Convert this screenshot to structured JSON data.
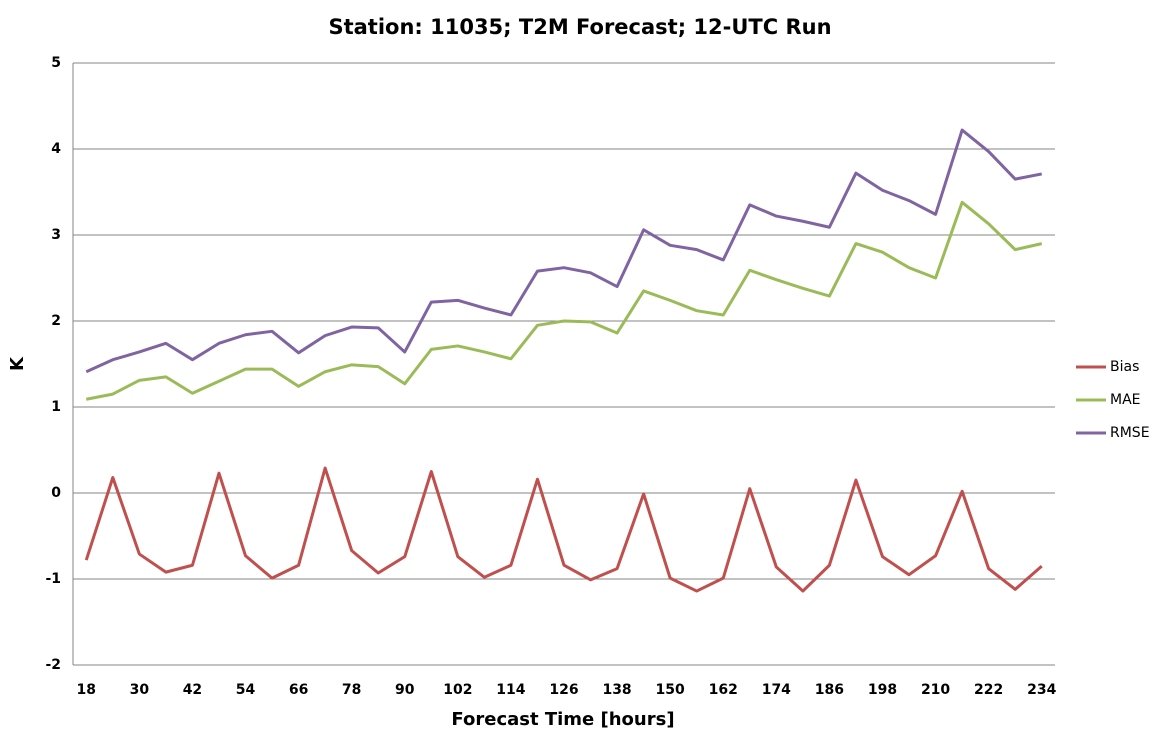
{
  "chart_data": {
    "type": "line",
    "title": "Station: 11035; T2M Forecast; 12-UTC Run",
    "xlabel": "Forecast Time [hours]",
    "ylabel": "K",
    "x": [
      18,
      24,
      30,
      36,
      42,
      48,
      54,
      60,
      66,
      72,
      78,
      84,
      90,
      96,
      102,
      108,
      114,
      120,
      126,
      132,
      138,
      144,
      150,
      156,
      162,
      168,
      174,
      180,
      186,
      192,
      198,
      204,
      210,
      216,
      222,
      228,
      234
    ],
    "series": [
      {
        "name": "Bias",
        "color": "#c0504d",
        "values": [
          -0.78,
          0.18,
          -0.71,
          -0.92,
          -0.84,
          0.23,
          -0.73,
          -0.99,
          -0.84,
          0.29,
          -0.67,
          -0.93,
          -0.74,
          0.25,
          -0.74,
          -0.98,
          -0.84,
          0.16,
          -0.84,
          -1.01,
          -0.88,
          -0.01,
          -0.99,
          -1.14,
          -0.99,
          0.05,
          -0.86,
          -1.14,
          -0.84,
          0.15,
          -0.74,
          -0.95,
          -0.73,
          0.02,
          -0.88,
          -1.12,
          -0.85
        ]
      },
      {
        "name": "MAE",
        "color": "#9bbb59",
        "values": [
          1.09,
          1.15,
          1.31,
          1.35,
          1.16,
          1.3,
          1.44,
          1.44,
          1.24,
          1.41,
          1.49,
          1.47,
          1.27,
          1.67,
          1.71,
          1.64,
          1.56,
          1.95,
          2.0,
          1.99,
          1.86,
          2.35,
          2.24,
          2.12,
          2.07,
          2.59,
          2.48,
          2.38,
          2.29,
          2.9,
          2.8,
          2.62,
          2.5,
          3.38,
          3.13,
          2.83,
          2.9
        ]
      },
      {
        "name": "RMSE",
        "color": "#8064a2",
        "values": [
          1.41,
          1.55,
          1.64,
          1.74,
          1.55,
          1.74,
          1.84,
          1.88,
          1.63,
          1.83,
          1.93,
          1.92,
          1.64,
          2.22,
          2.24,
          2.15,
          2.07,
          2.58,
          2.62,
          2.56,
          2.4,
          3.06,
          2.88,
          2.83,
          2.71,
          3.35,
          3.22,
          3.16,
          3.09,
          3.72,
          3.52,
          3.4,
          3.24,
          4.22,
          3.97,
          3.65,
          3.71
        ]
      }
    ],
    "xlim": [
      15,
      237
    ],
    "xticks": [
      18,
      30,
      42,
      54,
      66,
      78,
      90,
      102,
      114,
      126,
      138,
      150,
      162,
      174,
      186,
      198,
      210,
      222,
      234
    ],
    "ylim": [
      -2,
      5
    ],
    "yticks": [
      -2,
      -1,
      0,
      1,
      2,
      3,
      4,
      5
    ],
    "grid": true,
    "legend": "right"
  }
}
